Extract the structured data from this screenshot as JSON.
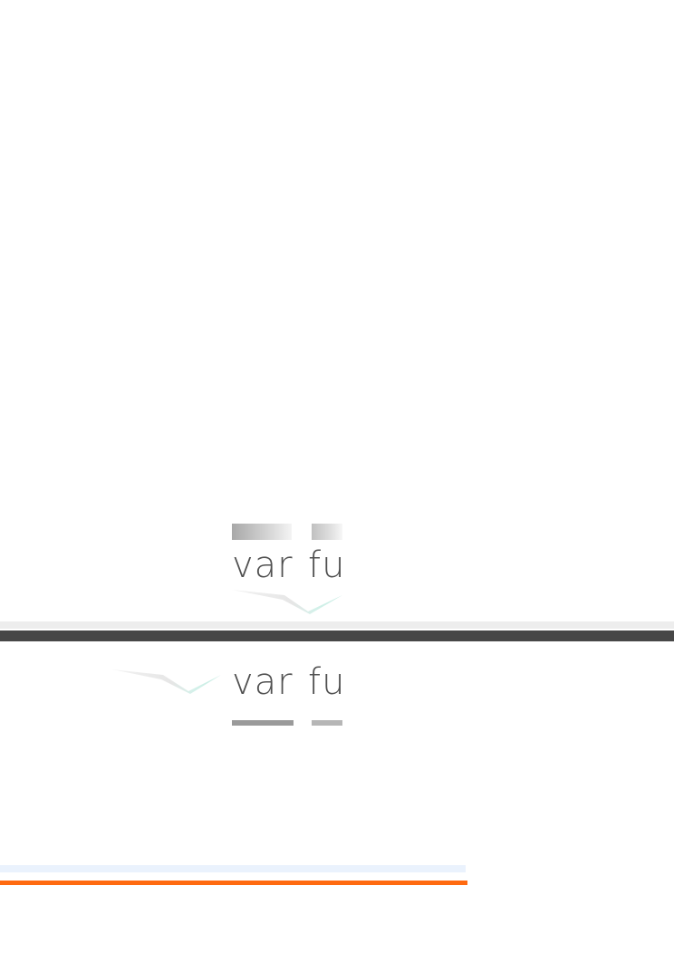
{
  "logo_top": {
    "word_left": "var",
    "word_right": "fu",
    "bar_color_left": "#a8a8a8",
    "bar_color_right": "#bdbdbd",
    "swoosh_color": "#cdeee6"
  },
  "logo_bottom": {
    "word_left": "var",
    "word_right": "fu",
    "bar_color_left": "#9a9a9a",
    "bar_color_right": "#b6b6b6",
    "swoosh_color": "#cdeee6"
  },
  "colors": {
    "divider_light": "#ededed",
    "divider_dark": "#474747",
    "stripe_blue": "#eaf2fd",
    "stripe_orange": "#ff6a10",
    "text": "#505050"
  }
}
